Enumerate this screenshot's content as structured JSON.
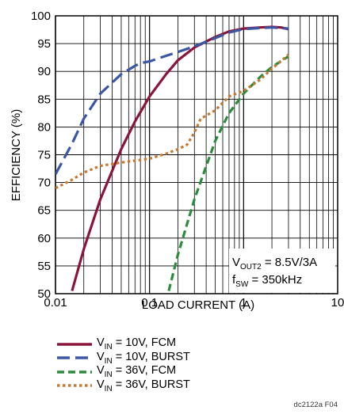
{
  "chart_data": {
    "type": "line",
    "xlabel": "LOAD CURRENT (A)",
    "ylabel": "EFFICIENCY (%)",
    "x_scale": "log",
    "xlim": [
      0.01,
      10
    ],
    "ylim": [
      50,
      100
    ],
    "x_ticks": [
      "0.01",
      "0.1",
      "1",
      "10"
    ],
    "y_ticks": [
      "50",
      "55",
      "60",
      "65",
      "70",
      "75",
      "80",
      "85",
      "90",
      "95",
      "100"
    ],
    "grid": true,
    "annotation": {
      "line1_main": "V",
      "line1_sub": "OUT2",
      "line1_rest": " = 8.5V/3A",
      "line2_main": "f",
      "line2_sub": "SW",
      "line2_rest": " = 350kHz"
    },
    "series": [
      {
        "name_main": "V",
        "name_sub": "IN",
        "name_rest": " = 10V, FCM",
        "color": "#8b1538",
        "dash": "solid",
        "points": [
          [
            0.015,
            50.5
          ],
          [
            0.02,
            58
          ],
          [
            0.03,
            67
          ],
          [
            0.05,
            76
          ],
          [
            0.07,
            81
          ],
          [
            0.1,
            85.5
          ],
          [
            0.15,
            89.5
          ],
          [
            0.2,
            92
          ],
          [
            0.3,
            94.3
          ],
          [
            0.5,
            96.2
          ],
          [
            0.7,
            97.2
          ],
          [
            1,
            97.7
          ],
          [
            1.5,
            97.9
          ],
          [
            2,
            98
          ],
          [
            2.5,
            97.9
          ],
          [
            3,
            97.6
          ]
        ]
      },
      {
        "name_main": "V",
        "name_sub": "IN",
        "name_rest": " = 10V, BURST",
        "color": "#3a56a5",
        "dash": "long",
        "points": [
          [
            0.01,
            71.5
          ],
          [
            0.015,
            77
          ],
          [
            0.02,
            81.5
          ],
          [
            0.03,
            86
          ],
          [
            0.05,
            89.5
          ],
          [
            0.07,
            91
          ],
          [
            0.08,
            91.5
          ],
          [
            0.1,
            91.8
          ],
          [
            0.15,
            92.8
          ],
          [
            0.2,
            93.5
          ],
          [
            0.3,
            94.5
          ],
          [
            0.5,
            96
          ],
          [
            0.7,
            97
          ],
          [
            1,
            97.6
          ],
          [
            1.5,
            97.8
          ],
          [
            2,
            97.9
          ],
          [
            3,
            97.7
          ]
        ]
      },
      {
        "name_main": "V",
        "name_sub": "IN",
        "name_rest": " = 36V, FCM",
        "color": "#2a8c3c",
        "dash": "medium",
        "points": [
          [
            0.16,
            50.5
          ],
          [
            0.2,
            57
          ],
          [
            0.3,
            67
          ],
          [
            0.5,
            77.5
          ],
          [
            0.7,
            82.5
          ],
          [
            1,
            86
          ],
          [
            1.5,
            89
          ],
          [
            2,
            90.8
          ],
          [
            3,
            92.7
          ]
        ]
      },
      {
        "name_main": "V",
        "name_sub": "IN",
        "name_rest": " = 36V, BURST",
        "color": "#c57a33",
        "dash": "dotted",
        "points": [
          [
            0.01,
            69
          ],
          [
            0.015,
            70.5
          ],
          [
            0.02,
            71.8
          ],
          [
            0.03,
            73
          ],
          [
            0.05,
            73.6
          ],
          [
            0.1,
            74.3
          ],
          [
            0.15,
            75.2
          ],
          [
            0.2,
            76
          ],
          [
            0.25,
            76.8
          ],
          [
            0.3,
            79
          ],
          [
            0.35,
            81.5
          ],
          [
            0.5,
            83
          ],
          [
            0.7,
            85.5
          ],
          [
            1,
            86.5
          ],
          [
            1.5,
            88.5
          ],
          [
            2,
            90.5
          ],
          [
            3,
            93
          ]
        ]
      }
    ]
  },
  "figure_id": "dc2122a F04"
}
